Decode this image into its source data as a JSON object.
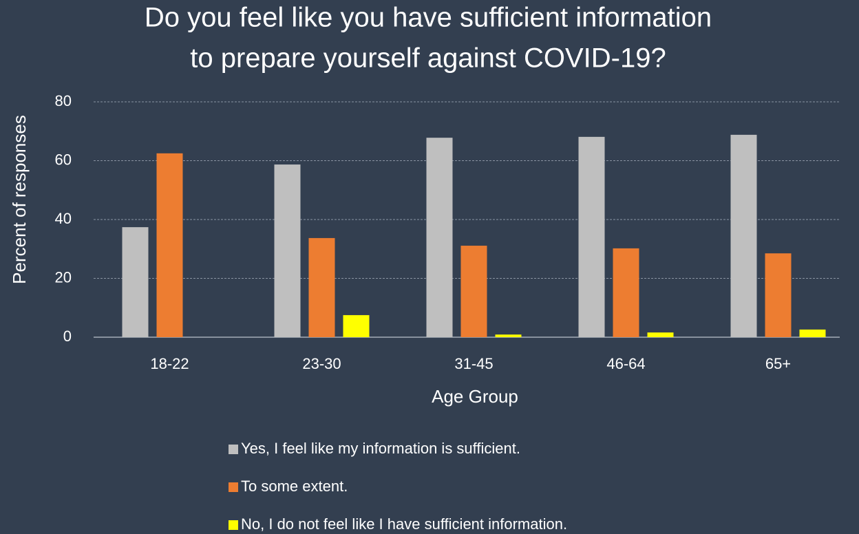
{
  "chart_data": {
    "type": "bar",
    "title": [
      "Do you feel like you have sufficient information",
      "to prepare yourself against COVID-19?"
    ],
    "x_label": "Age Group",
    "y_label": "Percent of responses",
    "categories": [
      "18-22",
      "23-30",
      "31-45",
      "46-64",
      "65+"
    ],
    "series": [
      {
        "name": "Yes, I feel like my information is sufficient.",
        "color": "#bfbfbf",
        "values": [
          37.4,
          58.7,
          67.8,
          68.1,
          68.8
        ]
      },
      {
        "name": "To some extent.",
        "color": "#ed7d31",
        "values": [
          62.5,
          33.7,
          31.1,
          30.2,
          28.5
        ]
      },
      {
        "name": "No, I do not feel like I have sufficient information.",
        "color": "#ffff00",
        "values": [
          0,
          7.5,
          0.9,
          1.6,
          2.6
        ]
      }
    ],
    "ylim": [
      0,
      80
    ],
    "yticks": [
      0,
      20,
      40,
      60,
      80
    ],
    "grid": true,
    "legend": "bottom"
  }
}
